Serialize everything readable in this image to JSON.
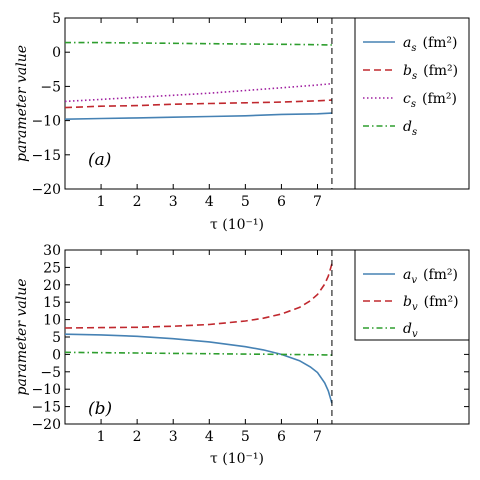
{
  "chart_data": [
    {
      "type": "line",
      "panel_label": "(a)",
      "xlabel": "τ  (10⁻¹)",
      "ylabel": "parameter  value",
      "xlim": [
        0,
        11.2
      ],
      "ylim": [
        -20,
        5
      ],
      "xticks": [
        1,
        2,
        3,
        4,
        5,
        6,
        7
      ],
      "yticks": [
        5,
        0,
        -5,
        -10,
        -15,
        -20
      ],
      "cutoff_x": 7.4,
      "legend_position": "top-right",
      "x": [
        0.0,
        1.0,
        2.0,
        3.0,
        4.0,
        5.0,
        6.0,
        7.0,
        7.4
      ],
      "series": [
        {
          "name": "a_s (fm²)",
          "legend_main": "a",
          "legend_sub": "s",
          "legend_unit": "(fm²)",
          "color": "#4682b4",
          "dash": "solid",
          "values": [
            -9.8,
            -9.7,
            -9.6,
            -9.5,
            -9.4,
            -9.3,
            -9.1,
            -9.0,
            -8.9
          ]
        },
        {
          "name": "b_s (fm²)",
          "legend_main": "b",
          "legend_sub": "s",
          "legend_unit": "(fm²)",
          "color": "#c0282e",
          "dash": "dashed",
          "values": [
            -8.1,
            -7.9,
            -7.8,
            -7.6,
            -7.5,
            -7.4,
            -7.3,
            -7.1,
            -7.0
          ]
        },
        {
          "name": "c_s (fm²)",
          "legend_main": "c",
          "legend_sub": "s",
          "legend_unit": "(fm²)",
          "color": "#a020a0",
          "dash": "dotted",
          "values": [
            -7.2,
            -6.9,
            -6.6,
            -6.3,
            -6.0,
            -5.6,
            -5.2,
            -4.8,
            -4.6
          ]
        },
        {
          "name": "d_s",
          "legend_main": "d",
          "legend_sub": "s",
          "legend_unit": "",
          "color": "#2e9e2e",
          "dash": "dashdot",
          "values": [
            1.4,
            1.4,
            1.35,
            1.3,
            1.25,
            1.2,
            1.15,
            1.1,
            1.05
          ]
        }
      ]
    },
    {
      "type": "line",
      "panel_label": "(b)",
      "xlabel": "τ  (10⁻¹)",
      "ylabel": "parameter  value",
      "xlim": [
        0,
        11.2
      ],
      "ylim": [
        -20,
        30
      ],
      "xticks": [
        1,
        2,
        3,
        4,
        5,
        6,
        7
      ],
      "yticks": [
        30,
        25,
        20,
        15,
        10,
        5,
        0,
        -5,
        -10,
        -15,
        -20
      ],
      "cutoff_x": 7.4,
      "legend_position": "top-right",
      "x": [
        0.0,
        1.0,
        2.0,
        3.0,
        4.0,
        5.0,
        5.5,
        6.0,
        6.5,
        6.8,
        7.0,
        7.2,
        7.3,
        7.4
      ],
      "series": [
        {
          "name": "a_v (fm²)",
          "legend_main": "a",
          "legend_sub": "v",
          "legend_unit": "(fm²)",
          "color": "#4682b4",
          "dash": "solid",
          "values": [
            5.8,
            5.6,
            5.2,
            4.5,
            3.6,
            2.2,
            1.3,
            0.0,
            -1.8,
            -3.6,
            -5.2,
            -8.2,
            -10.5,
            -14.0
          ]
        },
        {
          "name": "b_v (fm²)",
          "legend_main": "b",
          "legend_sub": "v",
          "legend_unit": "(fm²)",
          "color": "#c0282e",
          "dash": "dashed",
          "values": [
            7.6,
            7.7,
            7.8,
            8.1,
            8.6,
            9.6,
            10.4,
            11.6,
            13.5,
            15.4,
            17.2,
            20.2,
            22.5,
            26.0
          ]
        },
        {
          "name": "d_v",
          "legend_main": "d",
          "legend_sub": "v",
          "legend_unit": "",
          "color": "#2e9e2e",
          "dash": "dashdot",
          "values": [
            0.6,
            0.5,
            0.4,
            0.3,
            0.2,
            0.1,
            0.05,
            0.0,
            -0.05,
            -0.1,
            -0.12,
            -0.15,
            -0.17,
            -0.2
          ]
        }
      ]
    }
  ]
}
